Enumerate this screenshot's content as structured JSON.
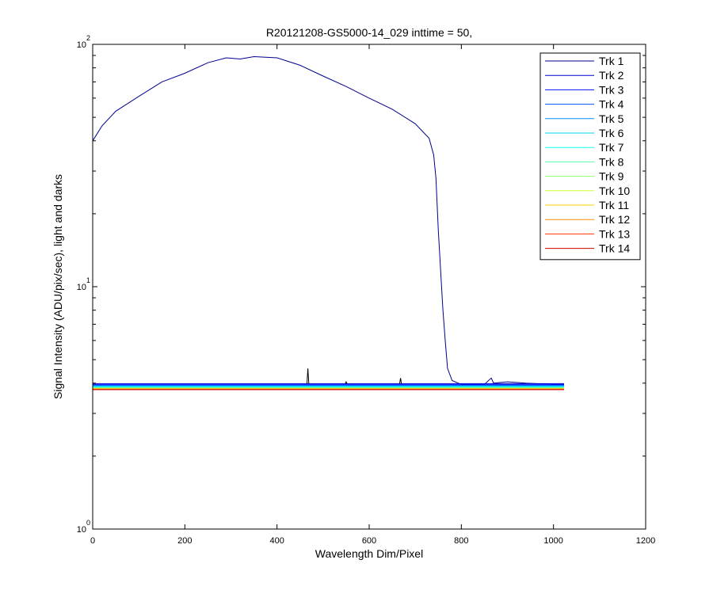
{
  "chart_data": {
    "type": "line",
    "title": "R20121208-GS5000-14_029 inttime = 50,",
    "xlabel": "Wavelength Dim/Pixel",
    "ylabel": "Signal Intensity (ADU/pix/sec), light and darks",
    "xlim": [
      0,
      1200
    ],
    "ylim": [
      1,
      100
    ],
    "yscale": "log",
    "x_ticks": [
      0,
      200,
      400,
      600,
      800,
      1000,
      1200
    ],
    "y_ticks": [
      {
        "value": 1,
        "base": "10",
        "exp": "0"
      },
      {
        "value": 10,
        "base": "10",
        "exp": "1"
      },
      {
        "value": 100,
        "base": "10",
        "exp": "2"
      }
    ],
    "grid": false,
    "legend_position": "top-right",
    "series": [
      {
        "name": "Trk 1",
        "color": "#00008F",
        "x": [
          0,
          20,
          50,
          100,
          150,
          200,
          250,
          290,
          320,
          350,
          400,
          450,
          500,
          550,
          600,
          650,
          700,
          730,
          740,
          745,
          750,
          760,
          765,
          770,
          780,
          800,
          850,
          865,
          870,
          900,
          940,
          1000,
          1023
        ],
        "y": [
          40,
          46,
          53,
          61,
          70,
          76,
          84,
          88,
          87,
          89,
          88,
          82,
          74,
          67,
          60,
          54,
          47,
          41,
          35,
          28,
          17,
          8,
          6,
          4.6,
          4.1,
          3.95,
          3.95,
          4.2,
          4.0,
          4.05,
          4.0,
          3.95,
          3.95
        ]
      },
      {
        "name": "Trk 2",
        "color": "#0000CF",
        "x": [
          0,
          1023
        ],
        "y": [
          3.98,
          3.98
        ],
        "spikes": [
          [
            467,
            4.6
          ],
          [
            550,
            4.05
          ],
          [
            668,
            4.2
          ]
        ]
      },
      {
        "name": "Trk 3",
        "color": "#0010FF",
        "x": [
          0,
          1023
        ],
        "y": [
          3.95,
          3.95
        ]
      },
      {
        "name": "Trk 4",
        "color": "#0050FF",
        "x": [
          0,
          1023
        ],
        "y": [
          3.92,
          3.92
        ]
      },
      {
        "name": "Trk 5",
        "color": "#0090FF",
        "x": [
          0,
          1023
        ],
        "y": [
          3.9,
          3.9
        ]
      },
      {
        "name": "Trk 6",
        "color": "#00D0FF",
        "x": [
          0,
          1023
        ],
        "y": [
          3.88,
          3.88
        ]
      },
      {
        "name": "Trk 7",
        "color": "#10FFEF",
        "x": [
          0,
          1023
        ],
        "y": [
          3.86,
          3.86
        ]
      },
      {
        "name": "Trk 8",
        "color": "#50FFAF",
        "x": [
          0,
          1023
        ],
        "y": [
          3.84,
          3.84
        ]
      },
      {
        "name": "Trk 9",
        "color": "#90FF6F",
        "x": [
          0,
          1023
        ],
        "y": [
          3.82,
          3.82
        ]
      },
      {
        "name": "Trk 10",
        "color": "#CFFF30",
        "x": [
          0,
          1023
        ],
        "y": [
          3.8,
          3.8
        ]
      },
      {
        "name": "Trk 11",
        "color": "#FFCF00",
        "x": [
          0,
          1023
        ],
        "y": [
          3.79,
          3.79
        ]
      },
      {
        "name": "Trk 12",
        "color": "#FF8F00",
        "x": [
          0,
          1023
        ],
        "y": [
          3.78,
          3.78
        ]
      },
      {
        "name": "Trk 13",
        "color": "#FF3000",
        "x": [
          0,
          1023
        ],
        "y": [
          3.77,
          3.77
        ]
      },
      {
        "name": "Trk 14",
        "color": "#CF0000",
        "x": [
          0,
          1023
        ],
        "y": [
          3.76,
          3.76
        ]
      }
    ]
  }
}
